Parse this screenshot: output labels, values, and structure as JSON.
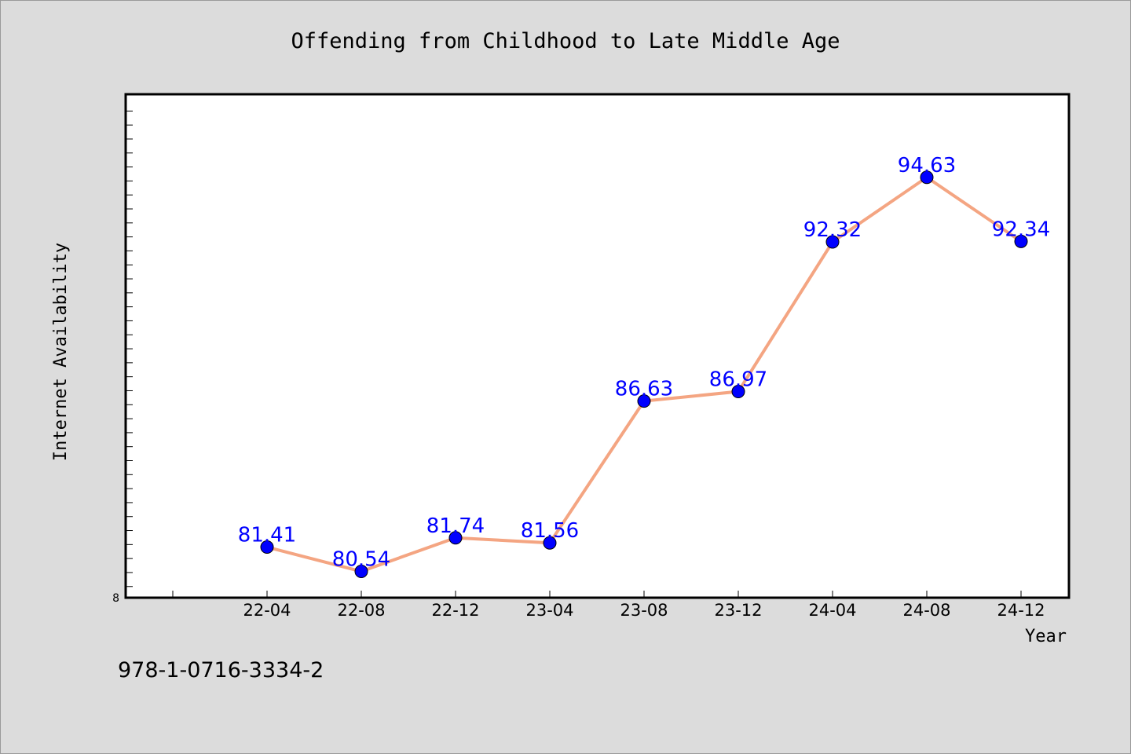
{
  "chart_data": {
    "type": "line",
    "title": "Offending from Childhood to Late Middle Age",
    "xlabel": "Year",
    "ylabel": "Internet Availability",
    "categories": [
      "22-04",
      "22-08",
      "22-12",
      "23-04",
      "23-08",
      "23-12",
      "24-04",
      "24-08",
      "24-12"
    ],
    "series": [
      {
        "values": [
          81.41,
          80.54,
          81.74,
          81.56,
          86.63,
          86.97,
          92.32,
          94.63,
          92.34
        ],
        "labels": [
          "81.41",
          "80.54",
          "81.74",
          "81.56",
          "86.63",
          "86.97",
          "92.32",
          "94.63",
          "92.34"
        ],
        "line_color": "#f4a582",
        "marker_color": "#0000ff",
        "label_color": "#0000ff"
      }
    ],
    "ylim": [
      79.6,
      97.6
    ],
    "ytick_label_min": "8",
    "grid": false,
    "legend": "none"
  },
  "footer": {
    "isbn": "978-1-0716-3334-2"
  },
  "colors": {
    "background": "#dcdcdc",
    "plot_background": "#ffffff"
  }
}
